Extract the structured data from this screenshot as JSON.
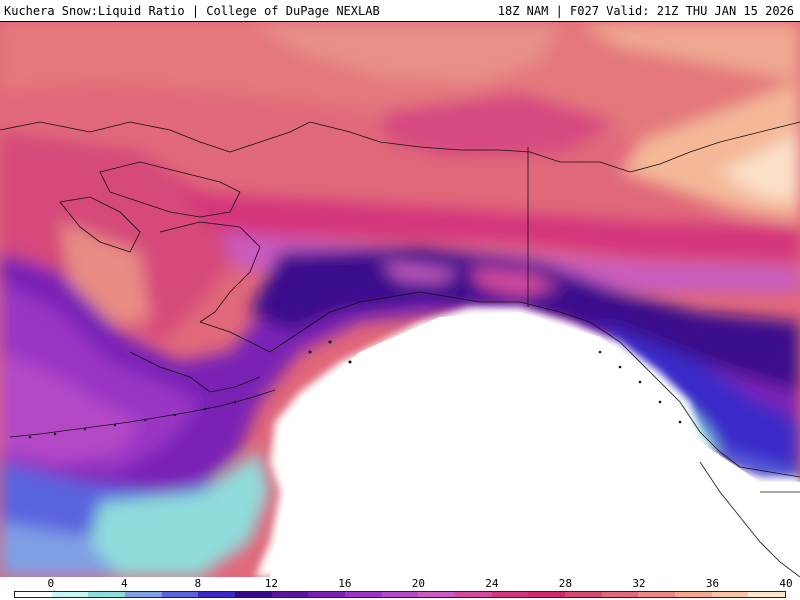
{
  "header": {
    "title_left": "Kuchera Snow:Liquid Ratio | College of DuPage NEXLAB",
    "title_right": "18Z NAM | F027 Valid: 21Z THU JAN 15 2026"
  },
  "colorbar": {
    "tick_labels": [
      "0",
      "4",
      "8",
      "12",
      "16",
      "20",
      "24",
      "28",
      "32",
      "36",
      "40"
    ],
    "colors": [
      "#ffffff",
      "#c8f4f6",
      "#8fdcdc",
      "#7f9fe4",
      "#5a63de",
      "#3b2ac8",
      "#3a0a8c",
      "#5a149e",
      "#7a22b6",
      "#9a34c4",
      "#b44ac8",
      "#c85cc0",
      "#d24a9e",
      "#d4347c",
      "#d0286a",
      "#d64a70",
      "#e06878",
      "#ea8a86",
      "#f2a690",
      "#f8c4a8",
      "#fde6cc"
    ]
  }
}
